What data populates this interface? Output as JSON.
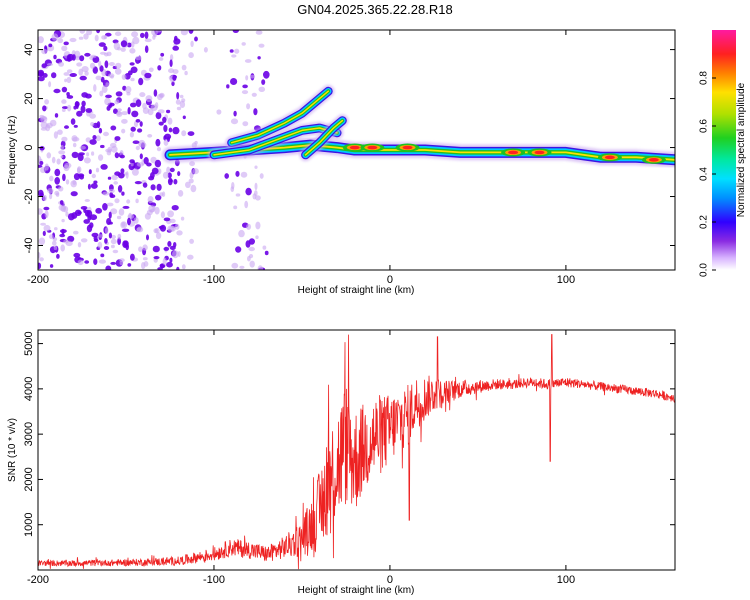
{
  "title": "GN04.2025.365.22.28.R18",
  "colors": {
    "snr_line": "#ee2222",
    "speck": "#6a00e6",
    "speck_light": "#c9a6f2",
    "band_core": "#ff2020",
    "band_mid": "#20c020",
    "band_edge": "#00c8ff",
    "band_outer": "#2a00e0"
  },
  "chart_data": [
    {
      "id": "spectrogram",
      "type": "heatmap",
      "xlabel": "Height of straight line (km)",
      "ylabel": "Frequency (Hz)",
      "xlim": [
        -200,
        162
      ],
      "ylim": [
        -50,
        48
      ],
      "xticks": [
        -200,
        -100,
        0,
        100
      ],
      "xtick_labels": [
        "-200",
        "-100",
        "0",
        "100"
      ],
      "yticks": [
        -40,
        -20,
        0,
        20,
        40
      ],
      "ytick_labels": [
        "-40",
        "-20",
        "0",
        "20",
        "40"
      ],
      "noise_region_km": [
        -200,
        -70
      ],
      "bands": [
        {
          "name": "main-trace",
          "points": [
            [
              -125,
              -3
            ],
            [
              -100,
              -2
            ],
            [
              -80,
              -1
            ],
            [
              -60,
              0
            ],
            [
              -45,
              1
            ],
            [
              -30,
              0
            ],
            [
              -20,
              -1
            ],
            [
              -10,
              -1
            ],
            [
              0,
              -1
            ],
            [
              20,
              -1
            ],
            [
              40,
              -2
            ],
            [
              60,
              -2
            ],
            [
              80,
              -2
            ],
            [
              100,
              -2
            ],
            [
              120,
              -4
            ],
            [
              140,
              -4
            ],
            [
              162,
              -5
            ]
          ]
        },
        {
          "name": "upper-branch",
          "points": [
            [
              -90,
              2
            ],
            [
              -75,
              5
            ],
            [
              -60,
              10
            ],
            [
              -50,
              14
            ],
            [
              -40,
              20
            ],
            [
              -35,
              23
            ]
          ]
        },
        {
          "name": "lower-branch",
          "points": [
            [
              -100,
              -3
            ],
            [
              -80,
              -1
            ],
            [
              -65,
              3
            ],
            [
              -50,
              7
            ],
            [
              -40,
              8
            ],
            [
              -30,
              6
            ]
          ]
        },
        {
          "name": "hook",
          "points": [
            [
              -48,
              -3
            ],
            [
              -40,
              2
            ],
            [
              -32,
              8
            ],
            [
              -27,
              11
            ]
          ]
        }
      ],
      "hotspots": [
        [
          -20,
          0
        ],
        [
          -10,
          0
        ],
        [
          10,
          0
        ],
        [
          70,
          -2
        ],
        [
          85,
          -2
        ],
        [
          125,
          -4
        ],
        [
          150,
          -5
        ]
      ]
    },
    {
      "id": "snr",
      "type": "line",
      "xlabel": "Height of straight line (km)",
      "ylabel": "SNR (10 * v/v)",
      "xlim": [
        -200,
        162
      ],
      "ylim": [
        0,
        5300
      ],
      "xticks": [
        -200,
        -100,
        0,
        100
      ],
      "xtick_labels": [
        "-200",
        "-100",
        "0",
        "100"
      ],
      "yticks": [
        1000,
        2000,
        3000,
        4000,
        5000
      ],
      "ytick_labels": [
        "1000",
        "2000",
        "3000",
        "4000",
        "5000"
      ],
      "series": [
        {
          "name": "SNR",
          "x": [
            -200,
            -180,
            -160,
            -140,
            -120,
            -100,
            -90,
            -80,
            -70,
            -60,
            -50,
            -45,
            -40,
            -35,
            -30,
            -25,
            -20,
            -15,
            -10,
            -5,
            0,
            5,
            10,
            15,
            20,
            25,
            30,
            35,
            40,
            50,
            60,
            70,
            80,
            90,
            100,
            110,
            120,
            130,
            140,
            150,
            162
          ],
          "y": [
            150,
            150,
            160,
            170,
            200,
            350,
            500,
            450,
            350,
            500,
            700,
            1000,
            1300,
            2000,
            2300,
            2800,
            2400,
            2700,
            2900,
            3000,
            3100,
            3300,
            3400,
            3700,
            3800,
            3900,
            3900,
            3950,
            4000,
            4050,
            4100,
            4100,
            4150,
            4100,
            4150,
            4100,
            4050,
            4000,
            3950,
            3900,
            3800
          ],
          "noise_amp": [
            60,
            70,
            70,
            80,
            100,
            150,
            200,
            200,
            180,
            250,
            400,
            600,
            900,
            1200,
            1300,
            1400,
            1200,
            1000,
            1000,
            900,
            800,
            700,
            700,
            600,
            500,
            400,
            300,
            250,
            200,
            150,
            120,
            110,
            110,
            120,
            110,
            100,
            100,
            100,
            100,
            100,
            100
          ]
        }
      ],
      "spikes": [
        [
          27,
          5150
        ],
        [
          92,
          5200
        ],
        [
          91,
          2400
        ],
        [
          11,
          1100
        ]
      ]
    }
  ],
  "colorbar": {
    "label": "Normalized spectral amplitude",
    "ticks": [
      0.0,
      0.2,
      0.4,
      0.6,
      0.8
    ],
    "tick_labels": [
      "0.0",
      "0.2",
      "0.4",
      "0.6",
      "0.8"
    ],
    "range": [
      0,
      1
    ]
  }
}
